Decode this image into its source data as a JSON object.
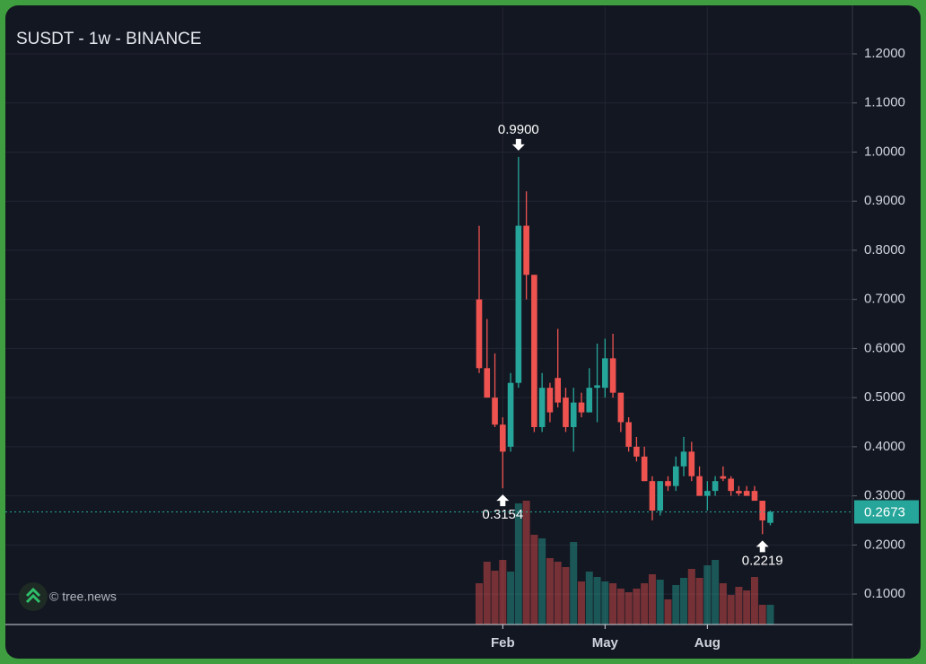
{
  "chart_data": {
    "type": "candlestick",
    "title": "SUSDT - 1w - BINANCE",
    "watermark": "© tree.news",
    "categories": [
      null,
      null,
      null,
      "Feb",
      null,
      null,
      null,
      null,
      null,
      null,
      null,
      null,
      null,
      null,
      null,
      null,
      "May",
      null,
      null,
      null,
      null,
      null,
      null,
      null,
      null,
      null,
      null,
      null,
      null,
      "Aug",
      null,
      null,
      null,
      null,
      null,
      null,
      null,
      null
    ],
    "open": [
      0.7,
      0.56,
      0.5,
      0.445,
      0.4,
      0.53,
      0.85,
      0.75,
      0.44,
      0.52,
      0.54,
      0.5,
      0.44,
      0.49,
      0.47,
      0.52,
      0.52,
      0.58,
      0.51,
      0.45,
      0.4,
      0.38,
      0.33,
      0.27,
      0.33,
      0.32,
      0.36,
      0.39,
      0.34,
      0.3,
      0.31,
      0.34,
      0.335,
      0.31,
      0.31,
      0.31,
      0.29,
      0.245
    ],
    "high": [
      0.85,
      0.66,
      0.59,
      0.46,
      0.55,
      0.99,
      0.92,
      0.75,
      0.55,
      0.53,
      0.64,
      0.52,
      0.52,
      0.51,
      0.56,
      0.61,
      0.62,
      0.63,
      0.51,
      0.46,
      0.42,
      0.4,
      0.34,
      0.33,
      0.34,
      0.38,
      0.42,
      0.41,
      0.36,
      0.33,
      0.34,
      0.36,
      0.34,
      0.32,
      0.32,
      0.32,
      0.29,
      0.27
    ],
    "low": [
      0.55,
      0.5,
      0.44,
      0.3154,
      0.39,
      0.52,
      0.7,
      0.43,
      0.43,
      0.45,
      0.48,
      0.43,
      0.39,
      0.46,
      0.47,
      0.45,
      0.5,
      0.5,
      0.43,
      0.39,
      0.37,
      0.33,
      0.25,
      0.26,
      0.31,
      0.31,
      0.34,
      0.33,
      0.3,
      0.27,
      0.3,
      0.33,
      0.3,
      0.3,
      0.3,
      0.29,
      0.2219,
      0.24
    ],
    "close": [
      0.56,
      0.5,
      0.445,
      0.39,
      0.53,
      0.85,
      0.75,
      0.44,
      0.52,
      0.47,
      0.49,
      0.44,
      0.49,
      0.47,
      0.52,
      0.525,
      0.58,
      0.51,
      0.45,
      0.4,
      0.38,
      0.33,
      0.27,
      0.33,
      0.32,
      0.36,
      0.39,
      0.34,
      0.3,
      0.31,
      0.33,
      0.335,
      0.31,
      0.305,
      0.3,
      0.29,
      0.25,
      0.2673
    ],
    "volume": [
      46,
      70,
      60,
      72,
      59,
      135,
      138,
      100,
      96,
      74,
      70,
      64,
      92,
      48,
      59,
      53,
      48,
      46,
      40,
      36,
      40,
      46,
      56,
      50,
      28,
      44,
      52,
      62,
      52,
      66,
      72,
      46,
      33,
      42,
      38,
      53,
      22,
      22
    ],
    "volume_ylim": [
      0,
      300
    ],
    "ylim": [
      0.038,
      1.295
    ],
    "yticks": [
      {
        "value": 0.1,
        "label": "0.1000"
      },
      {
        "value": 0.2,
        "label": "0.2000"
      },
      {
        "value": 0.3,
        "label": "0.3000"
      },
      {
        "value": 0.4,
        "label": "0.4000"
      },
      {
        "value": 0.5,
        "label": "0.5000"
      },
      {
        "value": 0.6,
        "label": "0.6000"
      },
      {
        "value": 0.7,
        "label": "0.7000"
      },
      {
        "value": 0.8,
        "label": "0.8000"
      },
      {
        "value": 0.9,
        "label": "0.9000"
      },
      {
        "value": 1.0,
        "label": "1.0000"
      },
      {
        "value": 1.1,
        "label": "1.1000"
      },
      {
        "value": 1.2,
        "label": "1.2000"
      }
    ],
    "last_price": {
      "value": 0.2673,
      "label": "0.2673"
    },
    "annotations": [
      {
        "text": "0.9900",
        "value": 0.99,
        "at": "high"
      },
      {
        "text": "0.3154",
        "value": 0.3154,
        "at": "low"
      },
      {
        "text": "0.2219",
        "value": 0.2219,
        "at": "low"
      }
    ],
    "up_color": "#26a69a",
    "down_color": "#ef5350",
    "grid": true
  }
}
